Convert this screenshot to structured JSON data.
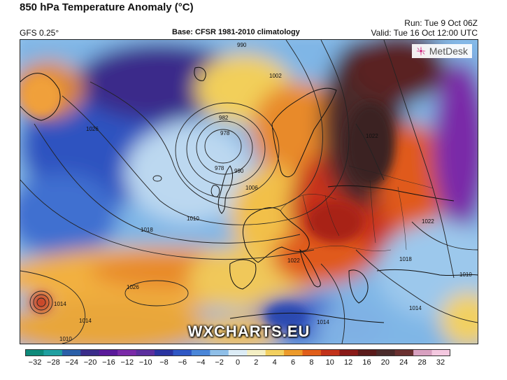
{
  "header": {
    "title": "850 hPa Temperature Anomaly (°C)",
    "model": "GFS 0.25°",
    "base": "Base: CFSR 1981-2010 climatology",
    "run": "Run: Tue 9 Oct 06Z",
    "valid": "Valid: Tue 16 Oct 12:00 UTC"
  },
  "brand": {
    "name": "MetDesk",
    "icon": "metdesk-logo-icon"
  },
  "watermark": "WXCHARTS.EU",
  "isobars": {
    "unit": "hPa",
    "labels": [
      "982",
      "978",
      "978",
      "990",
      "1002",
      "1006",
      "1010",
      "1018",
      "1026",
      "1022",
      "1014",
      "1014",
      "1022",
      "1022",
      "1018",
      "1014",
      "1010",
      "1026",
      "990",
      "1014",
      "1010"
    ]
  },
  "colorbar": {
    "ticks": [
      "−32",
      "−28",
      "−24",
      "−20",
      "−16",
      "−12",
      "−10",
      "−8",
      "−6",
      "−4",
      "−2",
      "0",
      "2",
      "4",
      "6",
      "8",
      "10",
      "12",
      "16",
      "20",
      "24",
      "28",
      "32"
    ],
    "colors": [
      "#0e8a7a",
      "#1f9fa0",
      "#2a5fa8",
      "#3a2c8a",
      "#5a1a9a",
      "#7a2aa8",
      "#5c2f9e",
      "#2a34a0",
      "#2f57c4",
      "#4a86d8",
      "#8fbfe8",
      "#dcecf6",
      "#f4efc4",
      "#f2d060",
      "#ec9a2a",
      "#e05e1a",
      "#c2321a",
      "#8a1a18",
      "#5a1a1a",
      "#4a2a2a",
      "#6a3030",
      "#d8a0c0",
      "#f4c8e0"
    ]
  }
}
